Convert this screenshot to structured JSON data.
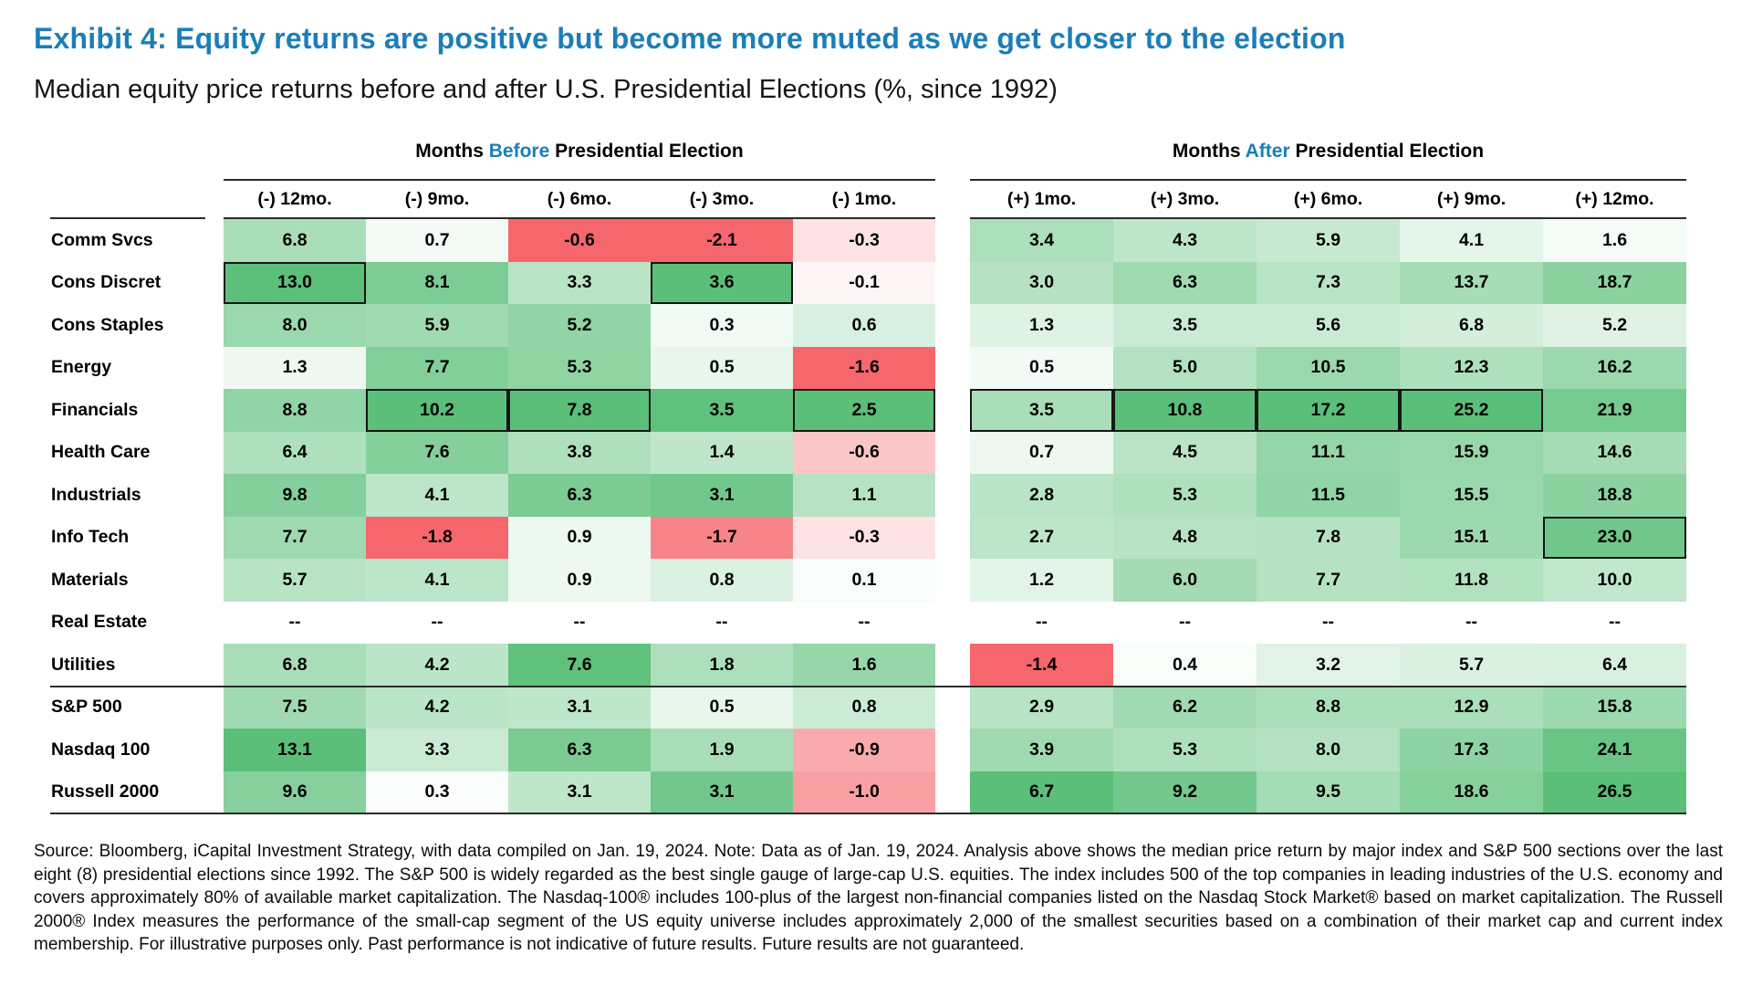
{
  "title": "Exhibit 4: Equity returns are positive but become more muted as we get closer to the election",
  "subtitle": "Median equity price returns before and after U.S. Presidential Elections (%, since 1992)",
  "accent_color": "#1b7eb8",
  "group_headers": {
    "before": {
      "pre": "Months ",
      "accent": "Before",
      "post": " Presidential Election"
    },
    "after": {
      "pre": "Months ",
      "accent": "After",
      "post": " Presidential Election"
    }
  },
  "chart_data": {
    "type": "heatmap",
    "missing_marker": "--",
    "columns_before": [
      "(-) 12mo.",
      "(-) 9mo.",
      "(-) 6mo.",
      "(-) 3mo.",
      "(-) 1mo."
    ],
    "columns_after": [
      "(+) 1mo.",
      "(+) 3mo.",
      "(+) 6mo.",
      "(+) 9mo.",
      "(+) 12mo."
    ],
    "rows": [
      {
        "label": "Comm Svcs",
        "group": "sector",
        "before": [
          6.8,
          0.7,
          -0.6,
          -2.1,
          -0.3
        ],
        "after": [
          3.4,
          4.3,
          5.9,
          4.1,
          1.6
        ]
      },
      {
        "label": "Cons Discret",
        "group": "sector",
        "before": [
          13.0,
          8.1,
          3.3,
          3.6,
          -0.1
        ],
        "after": [
          3.0,
          6.3,
          7.3,
          13.7,
          18.7
        ]
      },
      {
        "label": "Cons Staples",
        "group": "sector",
        "before": [
          8.0,
          5.9,
          5.2,
          0.3,
          0.6
        ],
        "after": [
          1.3,
          3.5,
          5.6,
          6.8,
          5.2
        ]
      },
      {
        "label": "Energy",
        "group": "sector",
        "before": [
          1.3,
          7.7,
          5.3,
          0.5,
          -1.6
        ],
        "after": [
          0.5,
          5.0,
          10.5,
          12.3,
          16.2
        ]
      },
      {
        "label": "Financials",
        "group": "sector",
        "before": [
          8.8,
          10.2,
          7.8,
          3.5,
          2.5
        ],
        "after": [
          3.5,
          10.8,
          17.2,
          25.2,
          21.9
        ]
      },
      {
        "label": "Health Care",
        "group": "sector",
        "before": [
          6.4,
          7.6,
          3.8,
          1.4,
          -0.6
        ],
        "after": [
          0.7,
          4.5,
          11.1,
          15.9,
          14.6
        ]
      },
      {
        "label": "Industrials",
        "group": "sector",
        "before": [
          9.8,
          4.1,
          6.3,
          3.1,
          1.1
        ],
        "after": [
          2.8,
          5.3,
          11.5,
          15.5,
          18.8
        ]
      },
      {
        "label": "Info Tech",
        "group": "sector",
        "before": [
          7.7,
          -1.8,
          0.9,
          -1.7,
          -0.3
        ],
        "after": [
          2.7,
          4.8,
          7.8,
          15.1,
          23.0
        ]
      },
      {
        "label": "Materials",
        "group": "sector",
        "before": [
          5.7,
          4.1,
          0.9,
          0.8,
          0.1
        ],
        "after": [
          1.2,
          6.0,
          7.7,
          11.8,
          10.0
        ]
      },
      {
        "label": "Real Estate",
        "group": "sector",
        "before": [
          null,
          null,
          null,
          null,
          null
        ],
        "after": [
          null,
          null,
          null,
          null,
          null
        ]
      },
      {
        "label": "Utilities",
        "group": "sector",
        "before": [
          6.8,
          4.2,
          7.6,
          1.8,
          1.6
        ],
        "after": [
          -1.4,
          0.4,
          3.2,
          5.7,
          6.4
        ]
      },
      {
        "label": "S&P 500",
        "group": "index",
        "before": [
          7.5,
          4.2,
          3.1,
          0.5,
          0.8
        ],
        "after": [
          2.9,
          6.2,
          8.8,
          12.9,
          15.8
        ]
      },
      {
        "label": "Nasdaq 100",
        "group": "index",
        "before": [
          13.1,
          3.3,
          6.3,
          1.9,
          -0.9
        ],
        "after": [
          3.9,
          5.3,
          8.0,
          17.3,
          24.1
        ]
      },
      {
        "label": "Russell 2000",
        "group": "index",
        "before": [
          9.6,
          0.3,
          3.1,
          3.1,
          -1.0
        ],
        "after": [
          6.7,
          9.2,
          9.5,
          18.6,
          26.5
        ]
      }
    ],
    "color_scale": {
      "positive_max": "#5bbf79",
      "negative_max": "#f5676d",
      "zero": "#ffffff",
      "normalization": "per-column",
      "highlight_rule": "max sector value in each column is outlined in black"
    }
  },
  "source_note": "Source: Bloomberg, iCapital Investment Strategy, with data compiled on Jan. 19, 2024. Note: Data as of Jan. 19, 2024. Analysis above shows the median price return by major index and S&P 500 sections over the last eight (8) presidential elections since 1992. The S&P 500 is widely regarded as the best single gauge of large-cap U.S. equities. The index includes 500 of the top companies in leading industries of the U.S. economy and covers approximately 80% of available market capitalization. The Nasdaq-100® includes 100-plus of the largest non-financial companies listed on the Nasdaq Stock Market® based on market capitalization. The Russell 2000® Index measures the performance of the small-cap segment of the US equity universe includes approximately 2,000 of the smallest securities based on a combination of their market cap and current index membership. For illustrative purposes only. Past performance is not indicative of future results. Future results are not guaranteed."
}
